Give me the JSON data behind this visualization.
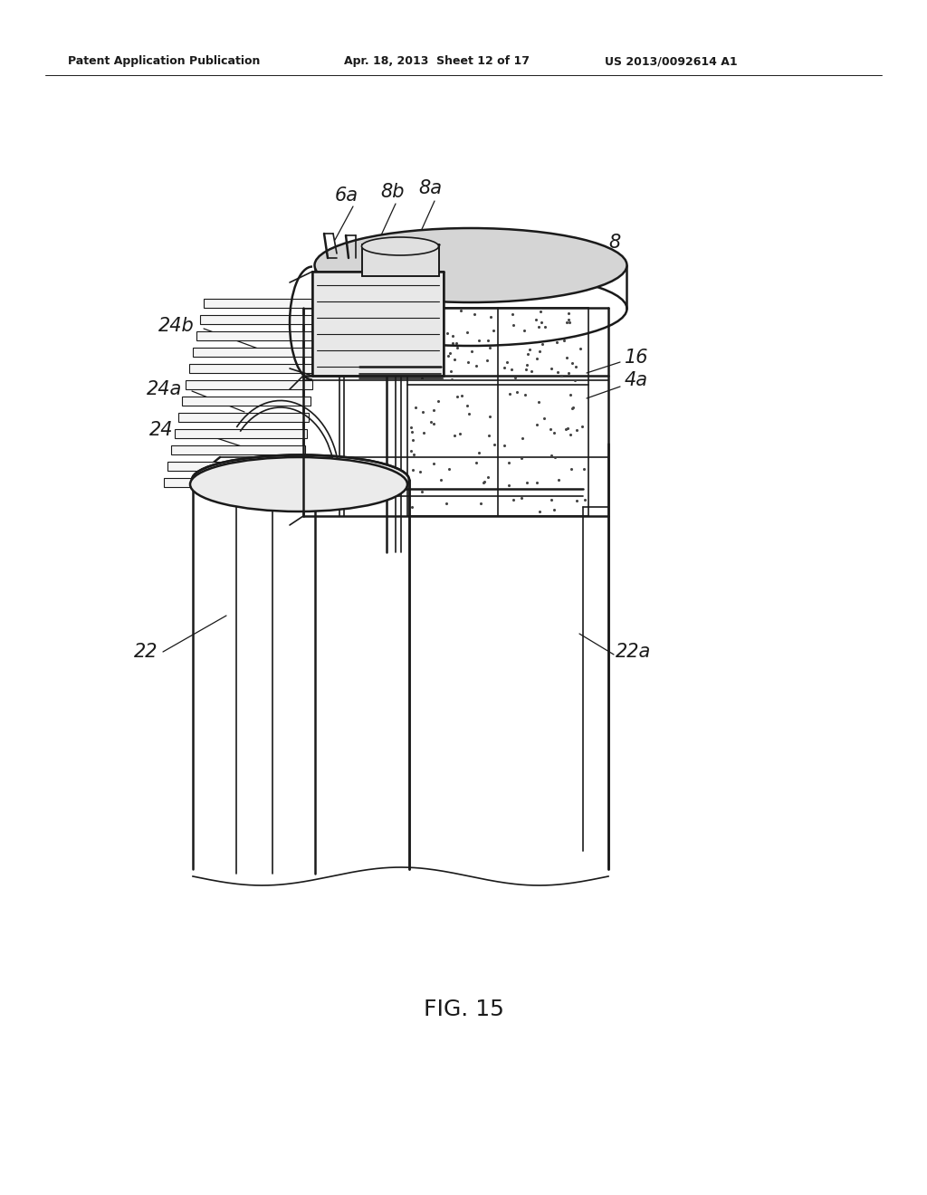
{
  "bg_color": "#ffffff",
  "line_color": "#1a1a1a",
  "header_left": "Patent Application Publication",
  "header_mid": "Apr. 18, 2013  Sheet 12 of 17",
  "header_right": "US 2013/0092614 A1",
  "fig_label": "FIG. 15",
  "fig_width": 10.24,
  "fig_height": 13.2,
  "dpi": 100
}
